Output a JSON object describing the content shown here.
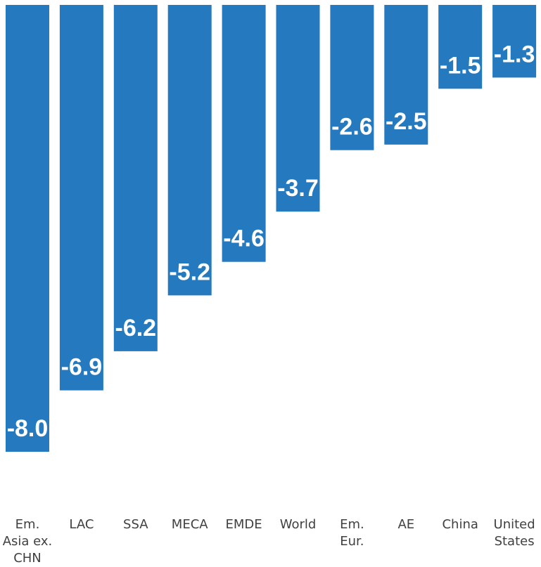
{
  "chart_data": {
    "type": "bar",
    "orientation": "vertical",
    "categories": [
      [
        "Em.",
        "Asia ex.",
        "CHN"
      ],
      [
        "LAC"
      ],
      [
        "SSA"
      ],
      [
        "MECA"
      ],
      [
        "EMDE"
      ],
      [
        "World"
      ],
      [
        "Em.",
        "Eur."
      ],
      [
        "AE"
      ],
      [
        "China"
      ],
      [
        "United",
        "States"
      ]
    ],
    "values": [
      -8.0,
      -6.9,
      -6.2,
      -5.2,
      -4.6,
      -3.7,
      -2.6,
      -2.5,
      -1.5,
      -1.3
    ],
    "value_labels": [
      "-8.0",
      "-6.9",
      "-6.2",
      "-5.2",
      "-4.6",
      "-3.7",
      "-2.6",
      "-2.5",
      "-1.5",
      "-1.3"
    ],
    "ylim": [
      -8.0,
      0
    ],
    "grid": false,
    "legend": "none",
    "bar_color": "#2479bf",
    "label_color": "#ffffff",
    "category_color": "#404040"
  }
}
